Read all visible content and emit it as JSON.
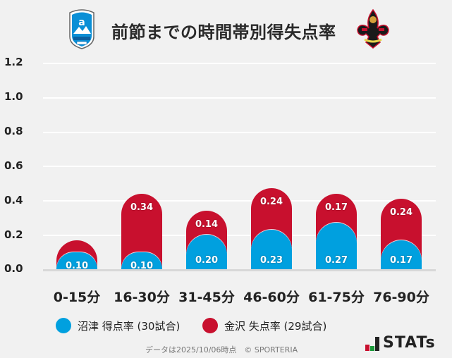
{
  "header": {
    "title": "前節までの時間帯別得失点率",
    "home_logo": "azul-claro-numazu-crest",
    "away_logo": "zweigen-kanazawa-crest"
  },
  "chart_data": {
    "type": "bar",
    "stacked": true,
    "title": "前節までの時間帯別得失点率",
    "xlabel": "",
    "ylabel": "",
    "ylim": [
      0,
      1.2
    ],
    "yticks": [
      "1.2",
      "1.0",
      "0.8",
      "0.6",
      "0.4",
      "0.2",
      "0.0"
    ],
    "grid": true,
    "legend_position": "bottom",
    "categories": [
      "0-15分",
      "16-30分",
      "31-45分",
      "46-60分",
      "61-75分",
      "76-90分"
    ],
    "series": [
      {
        "name": "沼津 得点率 (30試合)",
        "color": "#00a0df",
        "values": [
          0.1,
          0.1,
          0.2,
          0.23,
          0.27,
          0.17
        ],
        "labels": [
          "0.10",
          "0.10",
          "0.20",
          "0.23",
          "0.27",
          "0.17"
        ]
      },
      {
        "name": "金沢 失点率 (29試合)",
        "color": "#c8102e",
        "values": [
          0.07,
          0.34,
          0.14,
          0.24,
          0.17,
          0.24
        ],
        "labels": [
          "",
          "0.34",
          "0.14",
          "0.24",
          "0.17",
          "0.24"
        ]
      }
    ]
  },
  "legend": {
    "items": [
      {
        "label": "沼津 得点率 (30試合)",
        "color": "#00a0df"
      },
      {
        "label": "金沢 失点率 (29試合)",
        "color": "#c8102e"
      }
    ]
  },
  "footer": {
    "note": "データは2025/10/06時点　© SPORTERIA",
    "brand": "STATs"
  }
}
